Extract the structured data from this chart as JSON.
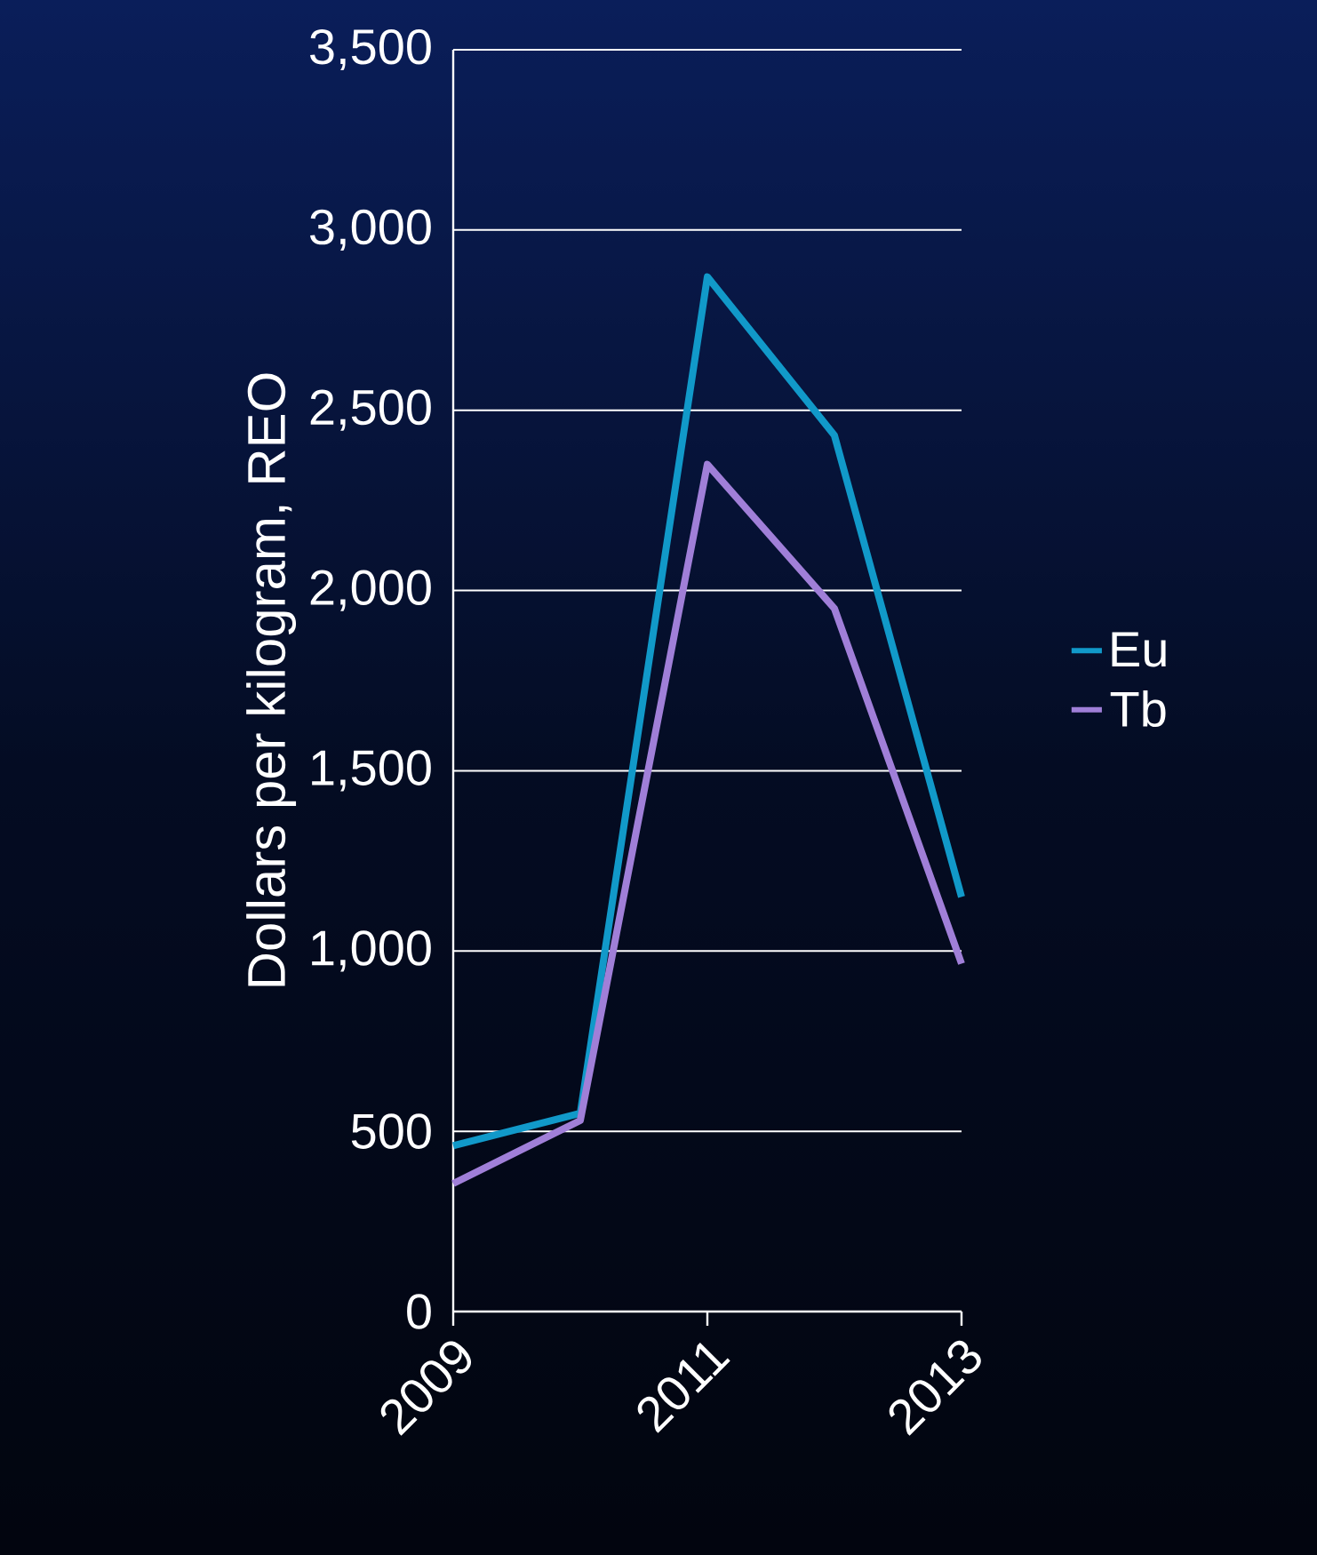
{
  "chart_data": {
    "type": "line",
    "ylabel": "Dollars per kilogram, REO",
    "x": [
      2009,
      2010,
      2011,
      2012,
      2013
    ],
    "series": [
      {
        "name": "Eu",
        "color": "#1199c9",
        "values": [
          460,
          550,
          2870,
          2430,
          1150
        ]
      },
      {
        "name": "Tb",
        "color": "#a07fd8",
        "values": [
          355,
          530,
          2350,
          1950,
          965
        ]
      }
    ],
    "xlim": [
      2009,
      2013
    ],
    "xticks": [
      2009,
      2011,
      2013
    ],
    "ylim": [
      0,
      3500
    ],
    "yticks": [
      0,
      500,
      {
        "value": 1000,
        "label": "1,000"
      },
      {
        "value": 1500,
        "label": "1,500"
      },
      {
        "value": 2000,
        "label": "2,000"
      },
      {
        "value": 2500,
        "label": "2,500"
      },
      {
        "value": 3000,
        "label": "3,000"
      },
      {
        "value": 3500,
        "label": "3,500"
      }
    ],
    "grid": "y",
    "legend": "right",
    "marker": "none",
    "line_style": "solid"
  }
}
